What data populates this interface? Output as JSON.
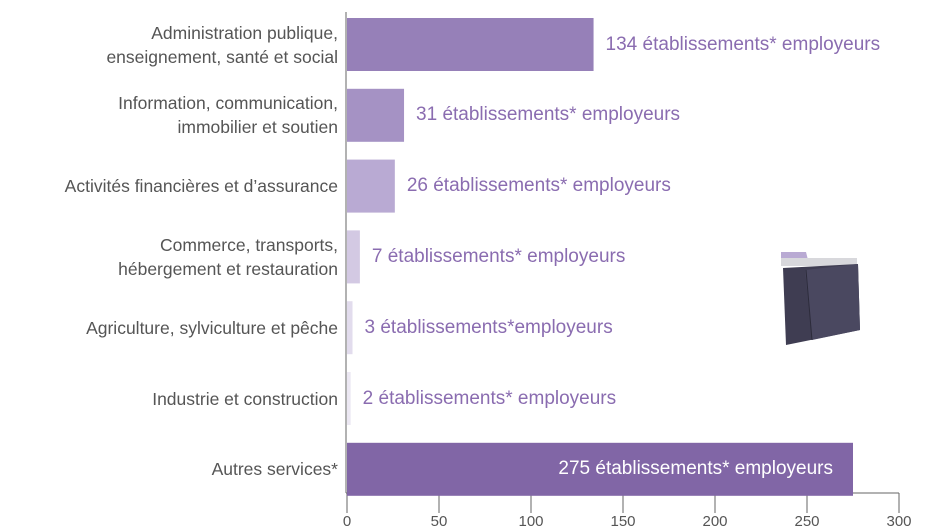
{
  "chart_data": {
    "type": "hbar",
    "categories": [
      "Administration publique,\nenseignement, santé et social",
      "Information, communication,\nimmobilier et soutien",
      "Activités financières et d’assurance",
      "Commerce, transports,\nhébergement et restauration",
      "Agriculture, sylviculture et pêche",
      "Industrie et construction",
      "Autres services*"
    ],
    "values": [
      134,
      31,
      26,
      7,
      3,
      2,
      275
    ],
    "value_labels": [
      "134 établissements* employeurs",
      "31 établissements* employeurs",
      "26 établissements* employeurs",
      "7 établissements* employeurs",
      "3 établissements*employeurs",
      "2 établissements* employeurs",
      "275 établissements* employeurs"
    ],
    "colors": [
      "#9680b8",
      "#a592c4",
      "#b9aad3",
      "#d3c9e3",
      "#e2dced",
      "#ece8f3",
      "#8166a6"
    ],
    "xlim": [
      0,
      300
    ],
    "xticks": [
      0,
      50,
      100,
      150,
      200,
      250,
      300
    ]
  }
}
